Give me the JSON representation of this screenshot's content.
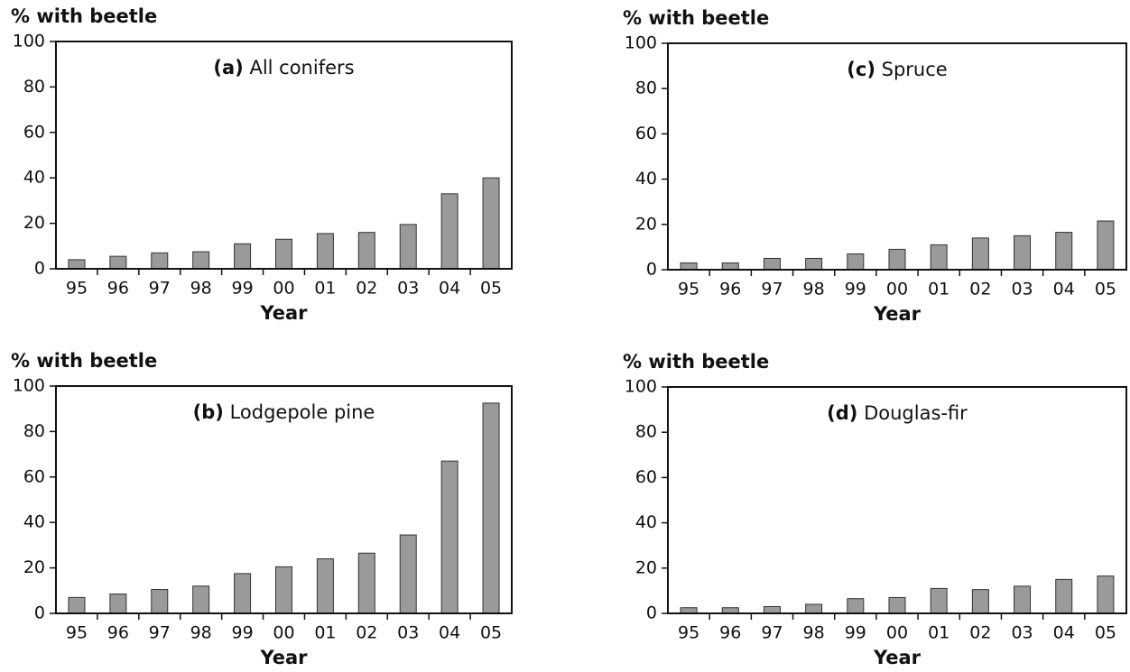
{
  "chart_data": [
    {
      "type": "bar",
      "panel": "(a)",
      "title": "All conifers",
      "y_label": "% with beetle",
      "x_label": "Year",
      "categories": [
        "95",
        "96",
        "97",
        "98",
        "99",
        "00",
        "01",
        "02",
        "03",
        "04",
        "05"
      ],
      "values": [
        4,
        5.5,
        7,
        7.5,
        11,
        13,
        15.5,
        16,
        19.5,
        33,
        40
      ],
      "color": "#9a9a9a",
      "ylim": [
        0,
        100
      ],
      "yticks": [
        0,
        20,
        40,
        60,
        80,
        100
      ]
    },
    {
      "type": "bar",
      "panel": "(c)",
      "title": "Spruce",
      "y_label": "% with beetle",
      "x_label": "Year",
      "categories": [
        "95",
        "96",
        "97",
        "98",
        "99",
        "00",
        "01",
        "02",
        "03",
        "04",
        "05"
      ],
      "values": [
        3,
        3,
        5,
        5,
        7,
        9,
        11,
        14,
        15,
        16.5,
        21.5
      ],
      "color": "#9a9a9a",
      "ylim": [
        0,
        100
      ],
      "yticks": [
        0,
        20,
        40,
        60,
        80,
        100
      ]
    },
    {
      "type": "bar",
      "panel": "(b)",
      "title": "Lodgepole pine",
      "y_label": "% with beetle",
      "x_label": "Year",
      "categories": [
        "95",
        "96",
        "97",
        "98",
        "99",
        "00",
        "01",
        "02",
        "03",
        "04",
        "05"
      ],
      "values": [
        7,
        8.5,
        10.5,
        12,
        17.5,
        20.5,
        24,
        26.5,
        34.5,
        67,
        92.5
      ],
      "color": "#9a9a9a",
      "ylim": [
        0,
        100
      ],
      "yticks": [
        0,
        20,
        40,
        60,
        80,
        100
      ]
    },
    {
      "type": "bar",
      "panel": "(d)",
      "title": "Douglas-fir",
      "y_label": "% with beetle",
      "x_label": "Year",
      "categories": [
        "95",
        "96",
        "97",
        "98",
        "99",
        "00",
        "01",
        "02",
        "03",
        "04",
        "05"
      ],
      "values": [
        2.5,
        2.5,
        3,
        4,
        6.5,
        7,
        11,
        10.5,
        12,
        15,
        16.5
      ],
      "color": "#9a9a9a",
      "ylim": [
        0,
        100
      ],
      "yticks": [
        0,
        20,
        40,
        60,
        80,
        100
      ]
    }
  ]
}
